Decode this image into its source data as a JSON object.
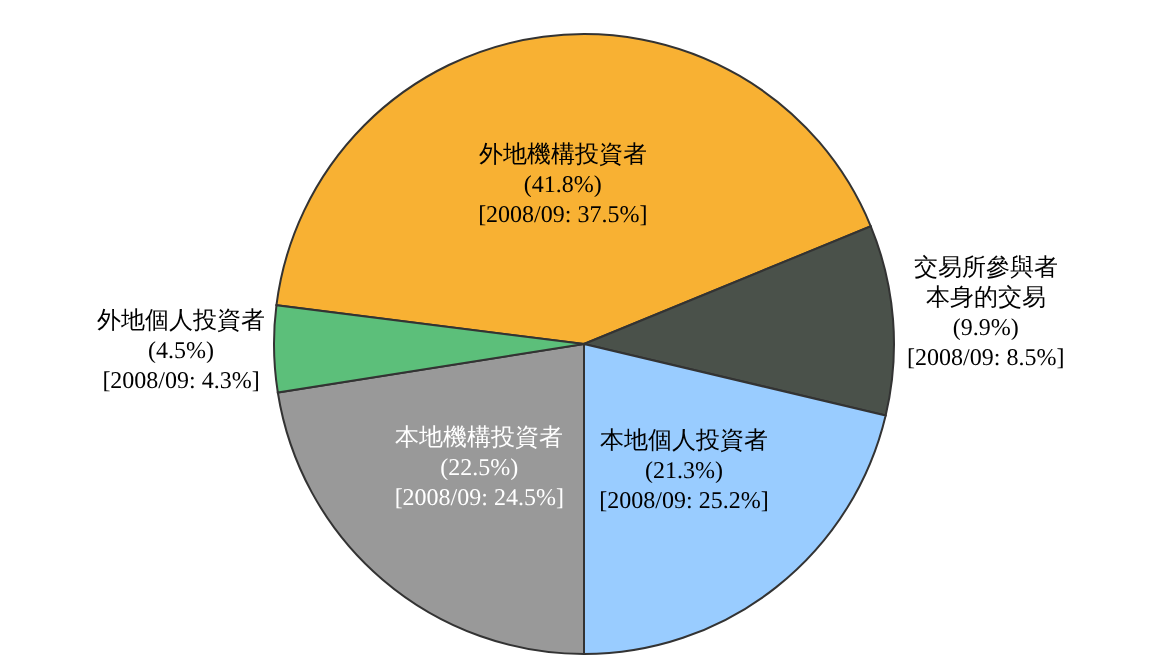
{
  "chart_data": {
    "type": "pie",
    "categories": [
      "外地機構投資者",
      "交易所參與者本身的交易",
      "本地個人投資者",
      "本地機構投資者",
      "外地個人投資者"
    ],
    "values": [
      41.8,
      9.9,
      21.3,
      22.5,
      4.5
    ],
    "colors": [
      "#f8b133",
      "#4a514a",
      "#99ccff",
      "#999999",
      "#5cbf7a"
    ],
    "value_labels": [
      "(41.8%)",
      "(9.9%)",
      "(21.3%)",
      "(22.5%)",
      "(4.5%)"
    ],
    "annotations": [
      {
        "text": "[2008/09: 37.5%]",
        "x": "外地機構投資者"
      },
      {
        "text": "[2008/09: 8.5%]",
        "x": "交易所參與者本身的交易"
      },
      {
        "text": "[2008/09: 25.2%]",
        "x": "本地個人投資者"
      },
      {
        "text": "[2008/09: 24.5%]",
        "x": "本地機構投資者"
      },
      {
        "text": "[2008/09: 4.3%]",
        "x": "外地個人投資者"
      }
    ]
  }
}
